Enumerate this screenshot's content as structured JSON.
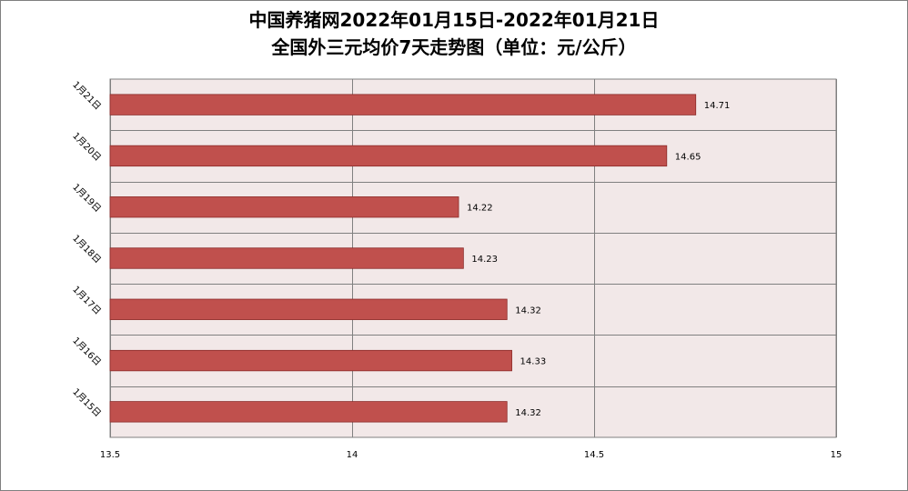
{
  "chart_data": {
    "type": "bar",
    "orientation": "horizontal",
    "title_line1": "中国养猪网2022年01月15日-2022年01月21日",
    "title_line2": "全国外三元均价7天走势图（单位：元/公斤）",
    "categories": [
      "1月21日",
      "1月20日",
      "1月19日",
      "1月18日",
      "1月17日",
      "1月16日",
      "1月15日"
    ],
    "values": [
      14.71,
      14.65,
      14.22,
      14.23,
      14.32,
      14.33,
      14.32
    ],
    "value_labels": [
      "14.71",
      "14.65",
      "14.22",
      "14.23",
      "14.32",
      "14.33",
      "14.32"
    ],
    "xlim": [
      13.5,
      15
    ],
    "xticks": [
      13.5,
      14,
      14.5,
      15
    ],
    "xtick_labels": [
      "13.5",
      "14",
      "14.5",
      "15"
    ],
    "grid": true,
    "colors": {
      "bar": "#c0504d",
      "bar_border": "#8b2a28",
      "plot_bg": "#f2e8e8",
      "grid": "#808080"
    }
  }
}
